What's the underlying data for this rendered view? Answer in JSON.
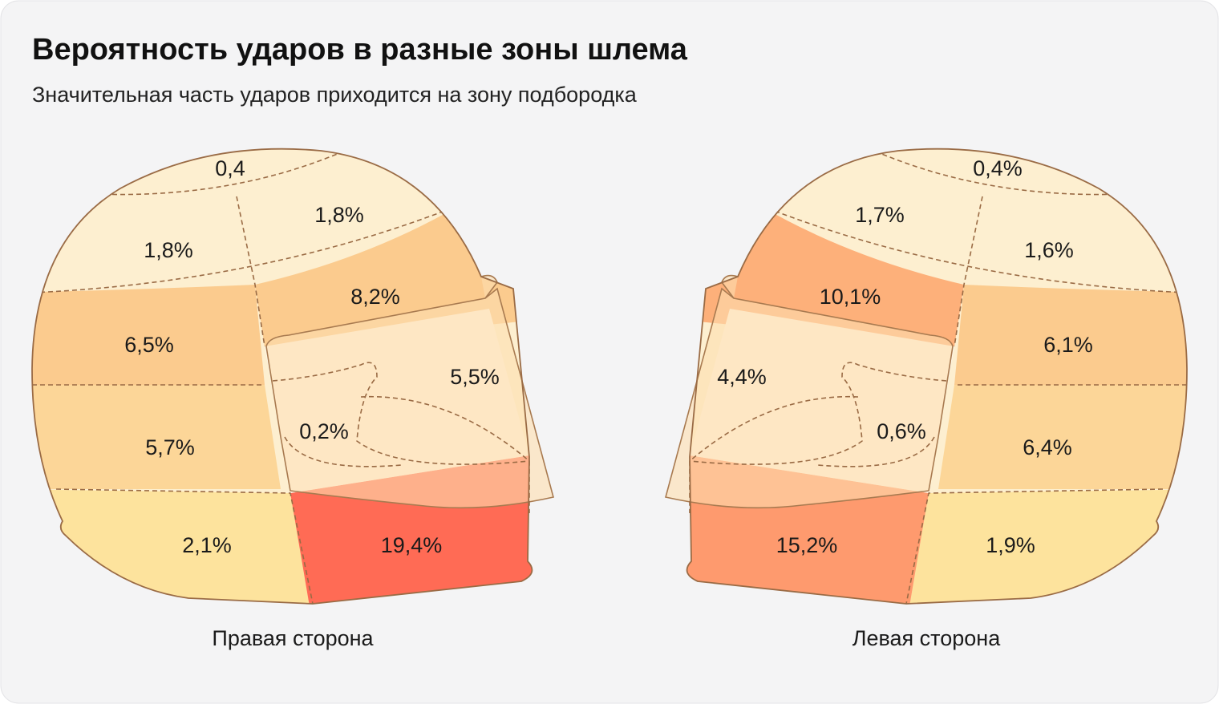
{
  "header": {
    "title": "Вероятность ударов в разные зоны шлема",
    "subtitle": "Значительная часть ударов приходится на зону подбородка"
  },
  "helmets": [
    {
      "caption": "Правая сторона",
      "zones": [
        "0,4",
        "1,8%",
        "1,8%",
        "8,2%",
        "6,5%",
        "5,5%",
        "0,2%",
        "5,7%",
        "2,1%",
        "19,4%"
      ]
    },
    {
      "caption": "Левая сторона",
      "zones": [
        "0,4%",
        "1,7%",
        "1,6%",
        "10,1%",
        "6,1%",
        "4,4%",
        "0,6%",
        "6,4%",
        "15,2%",
        "1,9%"
      ]
    }
  ]
}
